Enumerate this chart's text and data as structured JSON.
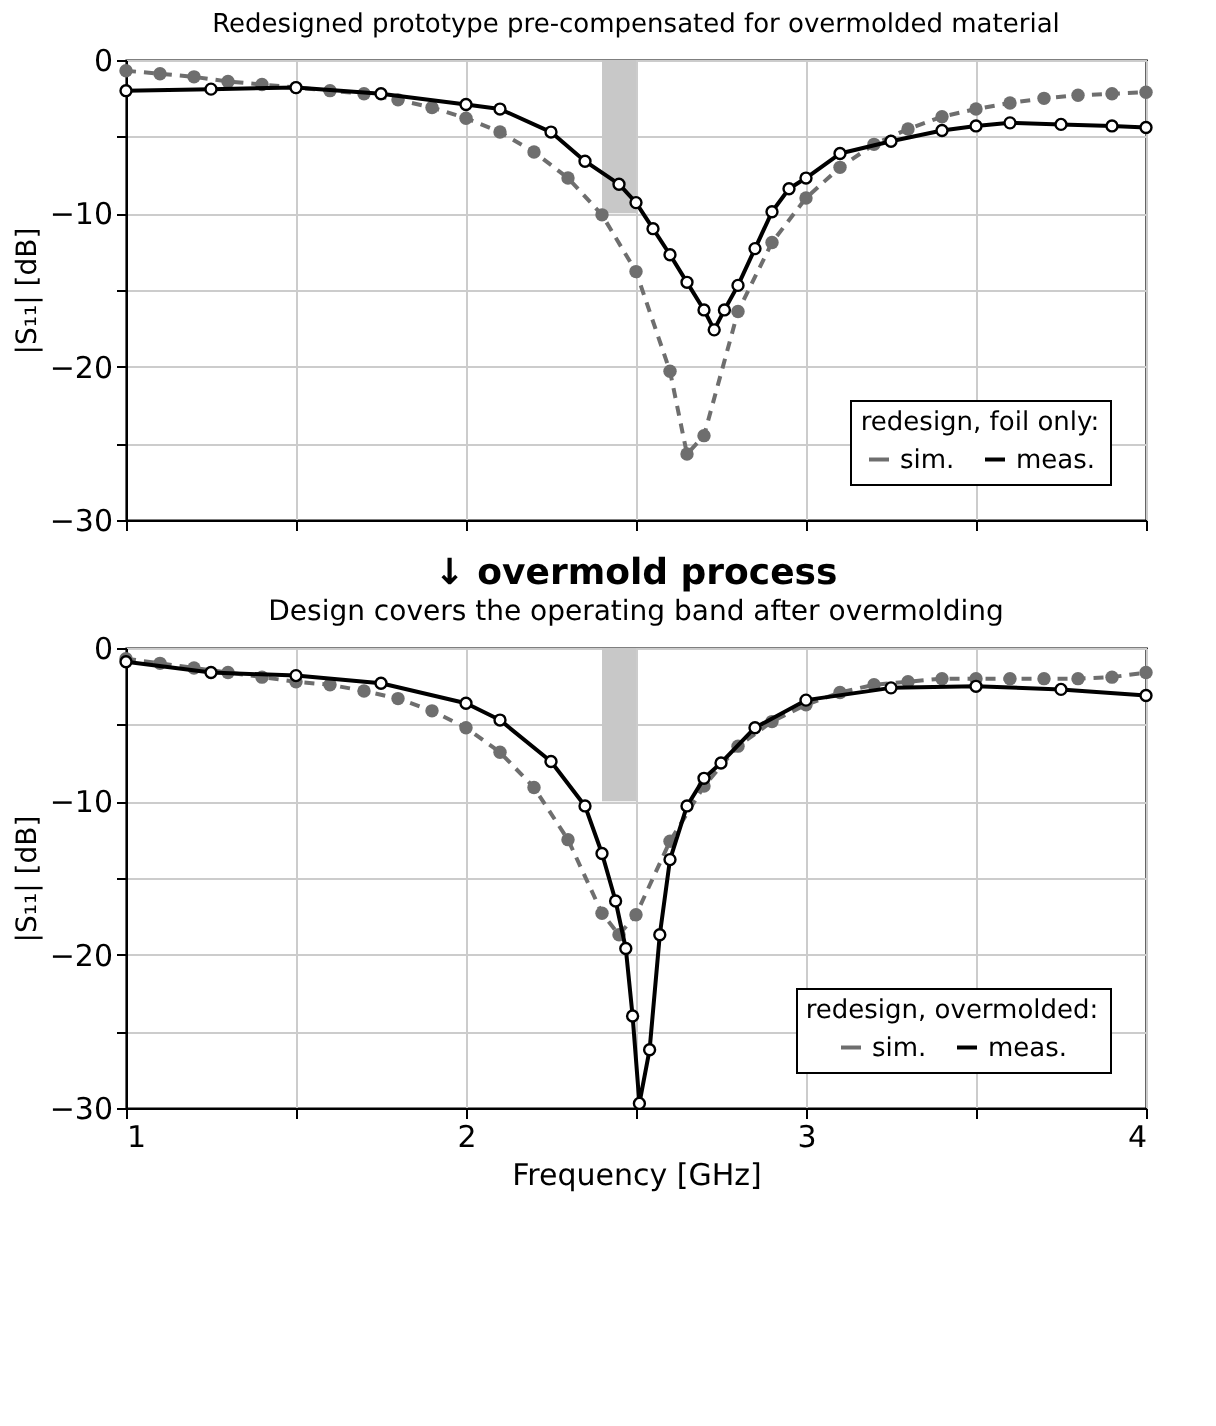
{
  "chart_data": [
    {
      "type": "line",
      "title": "Redesigned prototype pre-compensated for overmolded material",
      "ylabel": "|S₁₁| [dB]",
      "legend_title": "redesign, foil only:",
      "legend": "bottom right",
      "grid": true,
      "tick_labels": "y",
      "xlim": [
        1,
        4
      ],
      "xticks": [
        1,
        {
          "value": 1.5,
          "label": null
        },
        2,
        {
          "value": 2.5,
          "label": null
        },
        3,
        {
          "value": 3.5,
          "label": null
        },
        4
      ],
      "ylim": [
        -30,
        0
      ],
      "yticks": [
        -30,
        {
          "value": -25,
          "label": null
        },
        -20,
        {
          "value": -15,
          "label": null
        },
        -10,
        {
          "value": -5,
          "label": null
        },
        0
      ],
      "series": [
        {
          "type": "area",
          "color": "#c8c8c8",
          "x": [
            2.4,
            2.5
          ],
          "values": [
            -10,
            -10
          ]
        },
        {
          "name": "sim.",
          "color": "#6e6e6e",
          "marker": "circle",
          "line_style": "dashed",
          "x": [
            1.0,
            1.1,
            1.2,
            1.3,
            1.4,
            1.5,
            1.6,
            1.7,
            1.8,
            1.9,
            2.0,
            2.1,
            2.2,
            2.3,
            2.4,
            2.5,
            2.6,
            2.65,
            2.7,
            2.8,
            2.9,
            3.0,
            3.1,
            3.2,
            3.3,
            3.4,
            3.5,
            3.6,
            3.7,
            3.8,
            3.9,
            4.0
          ],
          "values": [
            -0.7,
            -0.9,
            -1.1,
            -1.4,
            -1.6,
            -1.8,
            -2.0,
            -2.2,
            -2.6,
            -3.1,
            -3.8,
            -4.7,
            -6.0,
            -7.7,
            -10.1,
            -13.8,
            -20.3,
            -25.7,
            -24.5,
            -16.4,
            -11.9,
            -9.0,
            -7.0,
            -5.5,
            -4.5,
            -3.7,
            -3.2,
            -2.8,
            -2.5,
            -2.3,
            -2.2,
            -2.1
          ]
        },
        {
          "name": "meas.",
          "color": "#000000",
          "marker": "circle",
          "line_style": "solid",
          "x": [
            1.0,
            1.25,
            1.5,
            1.75,
            2.0,
            2.1,
            2.25,
            2.35,
            2.45,
            2.5,
            2.55,
            2.6,
            2.65,
            2.7,
            2.73,
            2.76,
            2.8,
            2.85,
            2.9,
            2.95,
            3.0,
            3.1,
            3.25,
            3.4,
            3.5,
            3.6,
            3.75,
            3.9,
            4.0
          ],
          "values": [
            -2.0,
            -1.9,
            -1.8,
            -2.2,
            -2.9,
            -3.2,
            -4.7,
            -6.6,
            -8.1,
            -9.3,
            -11.0,
            -12.7,
            -14.5,
            -16.3,
            -17.6,
            -16.3,
            -14.7,
            -12.3,
            -9.9,
            -8.4,
            -7.7,
            -6.1,
            -5.3,
            -4.6,
            -4.3,
            -4.1,
            -4.2,
            -4.3,
            -4.4
          ]
        }
      ]
    },
    {
      "type": "line",
      "title": "↓ overmold process",
      "subtitle": "Design covers the operating band after overmolding",
      "ylabel": "|S₁₁| [dB]",
      "xlabel": "Frequency [GHz]",
      "legend_title": "redesign, overmolded:",
      "legend": "bottom right",
      "grid": true,
      "xlim": [
        1,
        4
      ],
      "xticks": [
        1,
        {
          "value": 1.5,
          "label": null
        },
        2,
        {
          "value": 2.5,
          "label": null
        },
        3,
        {
          "value": 3.5,
          "label": null
        },
        4
      ],
      "ylim": [
        -30,
        0
      ],
      "yticks": [
        -30,
        {
          "value": -25,
          "label": null
        },
        -20,
        {
          "value": -15,
          "label": null
        },
        -10,
        {
          "value": -5,
          "label": null
        },
        0
      ],
      "series": [
        {
          "type": "area",
          "color": "#c8c8c8",
          "x": [
            2.4,
            2.5
          ],
          "values": [
            -10,
            -10
          ]
        },
        {
          "name": "sim.",
          "color": "#6e6e6e",
          "marker": "circle",
          "line_style": "dashed",
          "x": [
            1.0,
            1.1,
            1.2,
            1.3,
            1.4,
            1.5,
            1.6,
            1.7,
            1.8,
            1.9,
            2.0,
            2.1,
            2.2,
            2.3,
            2.4,
            2.45,
            2.5,
            2.6,
            2.7,
            2.8,
            2.9,
            3.0,
            3.1,
            3.2,
            3.3,
            3.4,
            3.5,
            3.6,
            3.7,
            3.8,
            3.9,
            4.0
          ],
          "values": [
            -0.7,
            -1.0,
            -1.3,
            -1.6,
            -1.9,
            -2.2,
            -2.4,
            -2.8,
            -3.3,
            -4.1,
            -5.2,
            -6.8,
            -9.1,
            -12.5,
            -17.3,
            -18.7,
            -17.4,
            -12.6,
            -9.0,
            -6.4,
            -4.8,
            -3.7,
            -2.9,
            -2.4,
            -2.2,
            -2.0,
            -2.0,
            -2.0,
            -2.0,
            -2.0,
            -1.9,
            -1.6
          ]
        },
        {
          "name": "meas.",
          "color": "#000000",
          "marker": "circle",
          "line_style": "solid",
          "x": [
            1.0,
            1.25,
            1.5,
            1.75,
            2.0,
            2.1,
            2.25,
            2.35,
            2.4,
            2.44,
            2.47,
            2.49,
            2.51,
            2.54,
            2.57,
            2.6,
            2.65,
            2.7,
            2.75,
            2.85,
            3.0,
            3.25,
            3.5,
            3.75,
            4.0
          ],
          "values": [
            -0.9,
            -1.6,
            -1.8,
            -2.3,
            -3.6,
            -4.7,
            -7.4,
            -10.3,
            -13.4,
            -16.5,
            -19.6,
            -24.0,
            -29.7,
            -26.2,
            -18.7,
            -13.8,
            -10.3,
            -8.5,
            -7.5,
            -5.2,
            -3.4,
            -2.6,
            -2.5,
            -2.7,
            -3.1
          ]
        }
      ]
    }
  ]
}
